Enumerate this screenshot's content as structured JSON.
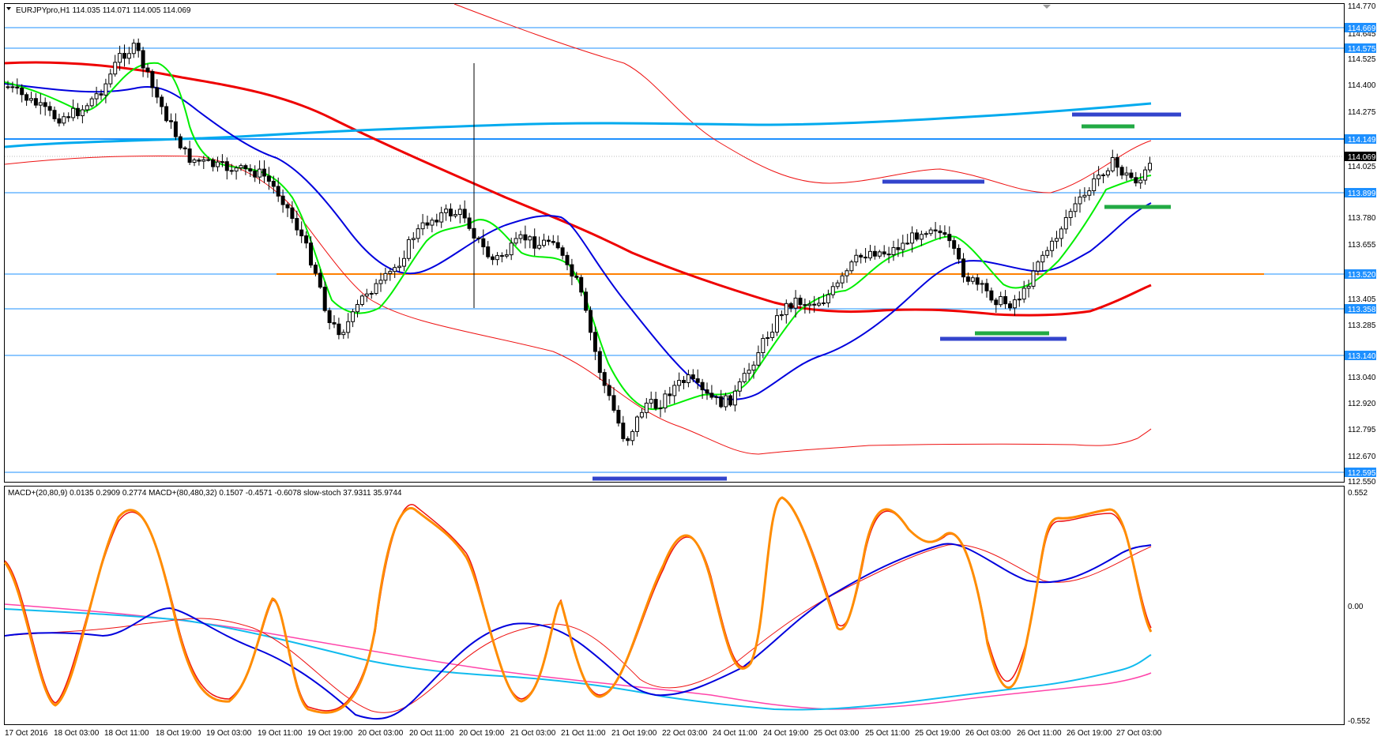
{
  "main_window": {
    "header_text": "EURJPYpro,H1  114.035 114.071 114.005 114.069",
    "price_scale": [
      "114.770",
      "114.645",
      "114.525",
      "114.400",
      "114.275",
      "114.025",
      "113.780",
      "113.655",
      "113.405",
      "113.285",
      "113.040",
      "112.920",
      "112.795",
      "112.670",
      "112.550"
    ],
    "price_markers": [
      {
        "label": "114.669",
        "bg": "#1e90ff",
        "fg": "#ffffff"
      },
      {
        "label": "114.575",
        "bg": "#1e90ff",
        "fg": "#ffffff"
      },
      {
        "label": "114.149",
        "bg": "#1e90ff",
        "fg": "#ffffff"
      },
      {
        "label": "114.069",
        "bg": "#000000",
        "fg": "#ffffff"
      },
      {
        "label": "113.899",
        "bg": "#1e90ff",
        "fg": "#ffffff"
      },
      {
        "label": "113.520",
        "bg": "#1e90ff",
        "fg": "#ffffff"
      },
      {
        "label": "113.358",
        "bg": "#1e90ff",
        "fg": "#ffffff"
      },
      {
        "label": "113.140",
        "bg": "#1e90ff",
        "fg": "#ffffff"
      },
      {
        "label": "112.595",
        "bg": "#1e90ff",
        "fg": "#ffffff"
      }
    ]
  },
  "sub_window": {
    "header_text": "MACD+(20,80,9) 0.0135 0.2909 0.2774  MACD+(80,480,32) 0.1507 -0.4571 -0.6078  slow-stoch 37.9311 35.9744",
    "scale": [
      "0.552",
      "0.00",
      "-0.552"
    ]
  },
  "time_axis": [
    "17 Oct 2016",
    "18 Oct 03:00",
    "18 Oct 11:00",
    "18 Oct 19:00",
    "19 Oct 03:00",
    "19 Oct 11:00",
    "19 Oct 19:00",
    "20 Oct 03:00",
    "20 Oct 11:00",
    "20 Oct 19:00",
    "21 Oct 03:00",
    "21 Oct 11:00",
    "21 Oct 19:00",
    "22 Oct 03:00",
    "24 Oct 11:00",
    "24 Oct 19:00",
    "25 Oct 03:00",
    "25 Oct 11:00",
    "25 Oct 19:00",
    "26 Oct 03:00",
    "26 Oct 11:00",
    "26 Oct 19:00",
    "27 Oct 03:00"
  ],
  "colors": {
    "accent": "#1e90ff",
    "ema_fast": "#00ee00",
    "ema_mid": "#0000dd",
    "ema_slow": "#ee0000",
    "ema_long": "#00aaee",
    "support_line": "#ff8000",
    "stoch": "#ff8c00",
    "macd_signal_pink": "#ff44aa"
  }
}
